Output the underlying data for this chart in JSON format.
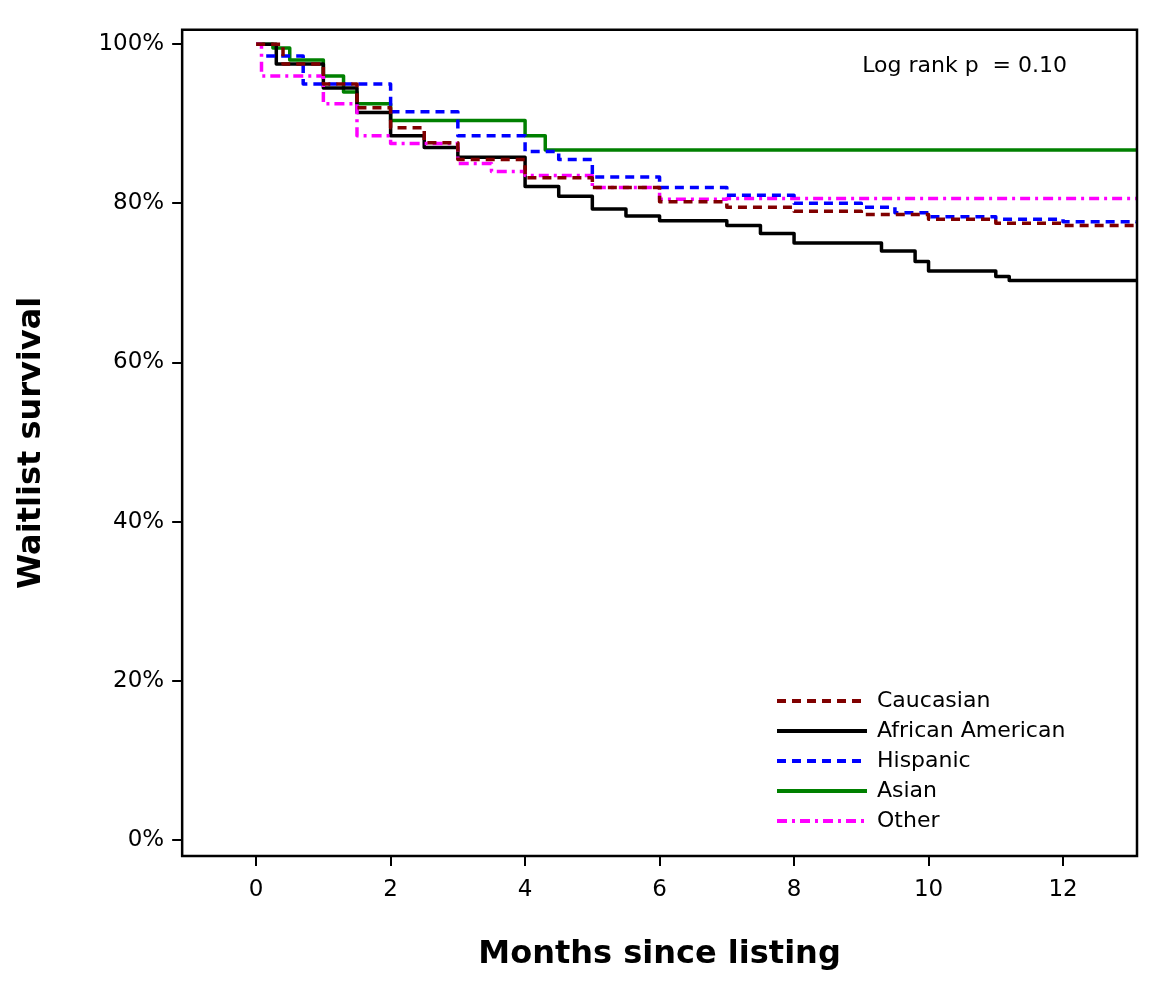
{
  "chart_data": {
    "type": "step",
    "xlabel": "Months since listing",
    "ylabel": "Waitlist survival",
    "annotations": [
      "Log rank p  = 0.10"
    ],
    "xlim": [
      -1.1,
      13.1
    ],
    "xticks": [
      0,
      2,
      4,
      6,
      8,
      10,
      12
    ],
    "ylim": [
      -2,
      101.8
    ],
    "yticks": [
      {
        "value": 0,
        "label": "0%"
      },
      {
        "value": 20,
        "label": "20%"
      },
      {
        "value": 40,
        "label": "40%"
      },
      {
        "value": 60,
        "label": "60%"
      },
      {
        "value": 80,
        "label": "80%"
      },
      {
        "value": 100,
        "label": "100%"
      }
    ],
    "grid": false,
    "legend": "bottom right",
    "marker": "none",
    "series": [
      {
        "name": "Caucasian",
        "color": "#800000",
        "line_style": "dashed",
        "x": [
          0,
          0.4,
          1,
          1.5,
          2,
          2.5,
          3,
          4,
          5,
          6,
          7,
          8,
          9,
          10,
          11,
          12,
          13.1
        ],
        "values": [
          100,
          97.5,
          95,
          92,
          89.5,
          87.6,
          85.5,
          83.2,
          82,
          80.2,
          79.5,
          79,
          78.6,
          78,
          77.5,
          77.2,
          77.2
        ]
      },
      {
        "name": "African American",
        "color": "#000000",
        "line_style": "solid",
        "x": [
          0,
          0.3,
          1,
          1.5,
          2,
          2.5,
          3,
          4,
          4.5,
          5,
          5.5,
          6,
          7,
          7.5,
          8,
          9.3,
          9.8,
          10,
          11,
          11.2,
          13.1
        ],
        "values": [
          100,
          97.5,
          94.5,
          91.4,
          88.5,
          87,
          85.8,
          82.1,
          80.9,
          79.3,
          78.4,
          77.8,
          77.2,
          76.2,
          75,
          74,
          72.7,
          71.5,
          70.8,
          70.3,
          70.3
        ]
      },
      {
        "name": "Hispanic",
        "color": "#0000ff",
        "line_style": "dashed",
        "x": [
          0.15,
          0.7,
          2,
          3,
          4,
          4.5,
          5,
          6,
          7,
          8,
          9,
          9.5,
          10,
          11,
          12,
          13.1
        ],
        "values": [
          98.5,
          95,
          91.5,
          88.5,
          86.5,
          85.5,
          83.3,
          82,
          81,
          80,
          79.5,
          78.8,
          78.3,
          78,
          77.7,
          77.5
        ]
      },
      {
        "name": "Asian",
        "color": "#008000",
        "line_style": "solid",
        "x": [
          0,
          0.25,
          0.5,
          1,
          1.3,
          1.5,
          2,
          4,
          4.3,
          13.1
        ],
        "values": [
          100,
          99.5,
          98,
          96,
          94,
          92.5,
          90.4,
          88.5,
          86.7,
          86.7
        ]
      },
      {
        "name": "Other",
        "color": "#ff00ff",
        "line_style": "dashdot",
        "x": [
          0,
          0.08,
          1,
          1.5,
          2,
          3,
          3.5,
          4,
          5,
          6,
          7,
          13.1
        ],
        "values": [
          100,
          96,
          92.5,
          88.5,
          87.5,
          85,
          84,
          83.5,
          82,
          80.5,
          80.6,
          80.6
        ]
      }
    ]
  }
}
